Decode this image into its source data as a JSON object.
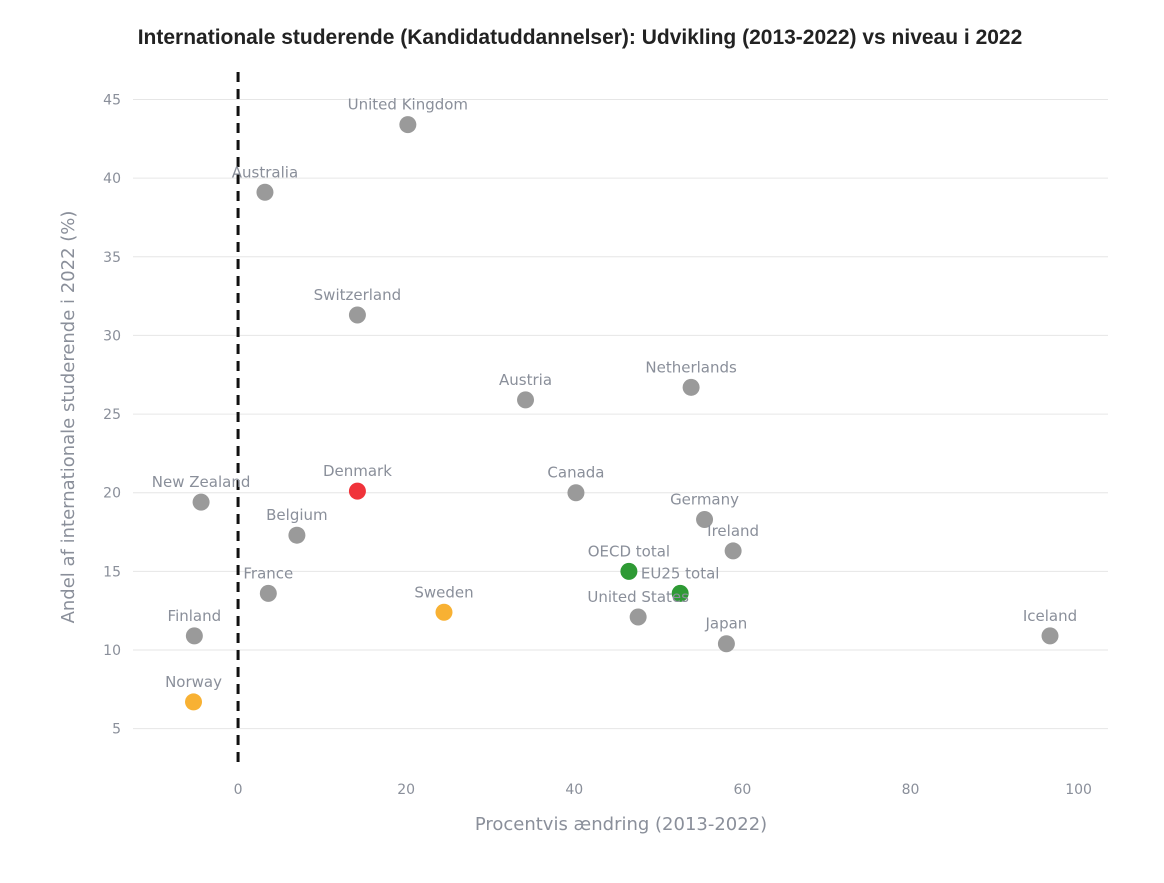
{
  "chart_data": {
    "type": "scatter",
    "title": "Internationale studerende (Kandidatuddannelser): Udvikling (2013-2022) vs niveau i 2022",
    "xlabel": "Procentvis ændring (2013-2022)",
    "ylabel": "Andel af internationale studerende i 2022 (%)",
    "xlim": [
      -12.5,
      103.5
    ],
    "ylim": [
      2.5,
      47
    ],
    "xticks": [
      0,
      20,
      40,
      60,
      80,
      100
    ],
    "yticks": [
      5,
      10,
      15,
      20,
      25,
      30,
      35,
      40,
      45
    ],
    "grid": "horizontal",
    "reference_line": {
      "x": 0,
      "style": "dashed"
    },
    "colors": {
      "default": "#9a9a9a",
      "highlight": "#f0333a",
      "nordic": "#f8b133",
      "aggregate": "#2e9a34"
    },
    "points": [
      {
        "label": "United Kingdom",
        "x": 20.2,
        "y": 43.4,
        "group": "default"
      },
      {
        "label": "Australia",
        "x": 3.2,
        "y": 39.1,
        "group": "default"
      },
      {
        "label": "Switzerland",
        "x": 14.2,
        "y": 31.3,
        "group": "default"
      },
      {
        "label": "Austria",
        "x": 34.2,
        "y": 25.9,
        "group": "default"
      },
      {
        "label": "Netherlands",
        "x": 53.9,
        "y": 26.7,
        "group": "default"
      },
      {
        "label": "New Zealand",
        "x": -4.4,
        "y": 19.4,
        "group": "default"
      },
      {
        "label": "Denmark",
        "x": 14.2,
        "y": 20.1,
        "group": "highlight"
      },
      {
        "label": "Canada",
        "x": 40.2,
        "y": 20.0,
        "group": "default"
      },
      {
        "label": "Germany",
        "x": 55.5,
        "y": 18.3,
        "group": "default"
      },
      {
        "label": "Belgium",
        "x": 7.0,
        "y": 17.3,
        "group": "default"
      },
      {
        "label": "Ireland",
        "x": 58.9,
        "y": 16.3,
        "group": "default"
      },
      {
        "label": "OECD total",
        "x": 46.5,
        "y": 15.0,
        "group": "aggregate"
      },
      {
        "label": "EU25 total",
        "x": 52.6,
        "y": 13.6,
        "group": "aggregate"
      },
      {
        "label": "France",
        "x": 3.6,
        "y": 13.6,
        "group": "default"
      },
      {
        "label": "United States",
        "x": 47.6,
        "y": 12.1,
        "group": "default"
      },
      {
        "label": "Sweden",
        "x": 24.5,
        "y": 12.4,
        "group": "nordic"
      },
      {
        "label": "Finland",
        "x": -5.2,
        "y": 10.9,
        "group": "default"
      },
      {
        "label": "Iceland",
        "x": 96.6,
        "y": 10.9,
        "group": "default"
      },
      {
        "label": "Japan",
        "x": 58.1,
        "y": 10.4,
        "group": "default"
      },
      {
        "label": "Norway",
        "x": -5.3,
        "y": 6.7,
        "group": "nordic"
      }
    ]
  }
}
